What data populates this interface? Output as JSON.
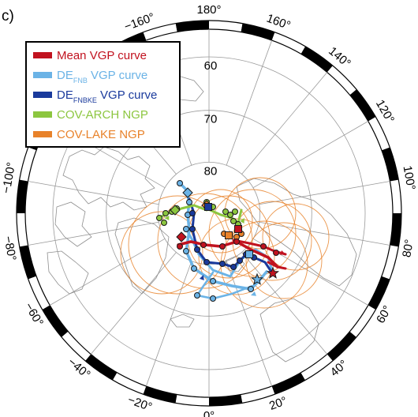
{
  "panel_label": "c)",
  "colors": {
    "mean_vgp": "#c1121f",
    "de_fnb": "#6bb3e6",
    "de_fnbke": "#1a3a9c",
    "cov_arch": "#8cc63f",
    "cov_lake": "#e8822a",
    "graticule": "#9a9a9a",
    "coast": "#8e8e8e",
    "confidence_circles": "#e8822a"
  },
  "legend": [
    {
      "key": "mean_vgp",
      "main": "Mean VGP curve",
      "sub": "",
      "tail": ""
    },
    {
      "key": "de_fnb",
      "main": "DE",
      "sub": "FNB",
      "tail": " VGP curve"
    },
    {
      "key": "de_fnbke",
      "main": "DE",
      "sub": "FNBKE",
      "tail": " VGP curve"
    },
    {
      "key": "cov_arch",
      "main": "COV-ARCH NGP",
      "sub": "",
      "tail": ""
    },
    {
      "key": "cov_lake",
      "main": "COV-LAKE NGP",
      "sub": "",
      "tail": ""
    }
  ],
  "longitude_labels": [
    {
      "lon": 180,
      "text": "180°"
    },
    {
      "lon": 160,
      "text": "160°"
    },
    {
      "lon": 140,
      "text": "140°"
    },
    {
      "lon": 120,
      "text": "120°"
    },
    {
      "lon": 100,
      "text": "100°"
    },
    {
      "lon": 80,
      "text": "80°"
    },
    {
      "lon": 60,
      "text": "60°"
    },
    {
      "lon": 40,
      "text": "40°"
    },
    {
      "lon": 20,
      "text": "20°"
    },
    {
      "lon": 0,
      "text": "0°"
    },
    {
      "lon": -20,
      "text": "−20°"
    },
    {
      "lon": -40,
      "text": "−40°"
    },
    {
      "lon": -60,
      "text": "−60°"
    },
    {
      "lon": -80,
      "text": "−80°"
    },
    {
      "lon": -100,
      "text": "−100°"
    },
    {
      "lon": -160,
      "text": "−160°"
    }
  ],
  "latitude_labels": [
    {
      "lat": 60,
      "text": "60"
    },
    {
      "lat": 70,
      "text": "70"
    },
    {
      "lat": 80,
      "text": "80"
    }
  ],
  "projection": {
    "type": "polar stereographic",
    "center_lat": 90,
    "min_lat": 55,
    "graticule_lon_step": 20,
    "graticule_lat": [
      60,
      70,
      80
    ]
  }
}
